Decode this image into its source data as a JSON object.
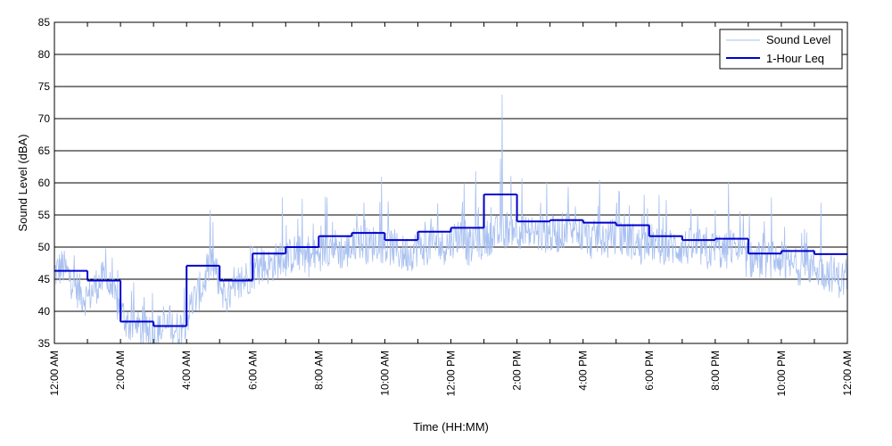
{
  "chart_data": {
    "type": "line",
    "title": "",
    "xlabel": "Time (HH:MM)",
    "ylabel": "Sound Level (dBA)",
    "xlim_hours": [
      0,
      24
    ],
    "ylim": [
      35,
      85
    ],
    "y_ticks": [
      35,
      40,
      45,
      50,
      55,
      60,
      65,
      70,
      75,
      80,
      85
    ],
    "x_tick_hours": [
      0,
      2,
      4,
      6,
      8,
      10,
      12,
      14,
      16,
      18,
      20,
      22,
      24
    ],
    "x_tick_labels": [
      "12:00 AM",
      "2:00 AM",
      "4:00 AM",
      "6:00 AM",
      "8:00 AM",
      "10:00 AM",
      "12:00 PM",
      "2:00 PM",
      "4:00 PM",
      "6:00 PM",
      "8:00 PM",
      "10:00 PM",
      "12:00 AM"
    ],
    "grid": "horizontal",
    "legend_position": "top-right",
    "series": [
      {
        "name": "Sound Level",
        "color": "#a8c0f0",
        "style": "thin",
        "anchor_hours": [
          0,
          0.25,
          0.5,
          0.75,
          1,
          1.25,
          1.5,
          1.75,
          2,
          2.25,
          2.5,
          2.75,
          3,
          3.25,
          3.5,
          3.75,
          4,
          4.25,
          4.5,
          4.75,
          5,
          5.25,
          5.5,
          5.75,
          6,
          6.25,
          6.5,
          6.75,
          7,
          7.25,
          7.5,
          7.75,
          8,
          8.25,
          8.5,
          8.75,
          9,
          9.25,
          9.5,
          9.75,
          10,
          10.25,
          10.5,
          10.75,
          11,
          11.25,
          11.5,
          11.75,
          12,
          12.25,
          12.5,
          12.75,
          13,
          13.25,
          13.5,
          13.75,
          14,
          14.25,
          14.5,
          14.75,
          15,
          15.25,
          15.5,
          15.75,
          16,
          16.25,
          16.5,
          16.75,
          17,
          17.25,
          17.5,
          17.75,
          18,
          18.25,
          18.5,
          18.75,
          19,
          19.25,
          19.5,
          19.75,
          20,
          20.25,
          20.5,
          20.75,
          21,
          21.25,
          21.5,
          21.75,
          22,
          22.25,
          22.5,
          22.75,
          23,
          23.25,
          23.5,
          23.75,
          24
        ],
        "anchor_values": [
          46,
          47,
          45,
          43,
          42,
          44,
          45,
          43,
          40,
          38,
          37,
          37,
          36,
          37,
          38,
          37,
          39,
          42,
          44,
          48,
          44,
          42,
          43,
          45,
          46,
          47,
          47,
          48,
          48,
          49,
          49,
          48,
          49,
          50,
          50,
          49,
          50,
          51,
          50,
          51,
          50,
          50,
          49,
          49,
          50,
          50,
          51,
          50,
          51,
          52,
          50,
          50,
          51,
          52,
          52,
          53,
          53,
          52,
          52,
          52,
          52,
          52,
          53,
          52,
          52,
          51,
          52,
          51,
          52,
          51,
          51,
          50,
          51,
          50,
          50,
          50,
          50,
          50,
          50,
          49,
          50,
          49,
          50,
          49,
          48,
          48,
          48,
          48,
          48,
          47,
          47,
          47,
          47,
          46,
          46,
          45,
          45
        ],
        "spikes": [
          [
            1.55,
            50
          ],
          [
            2.4,
            46
          ],
          [
            3.5,
            42
          ],
          [
            4.8,
            55
          ],
          [
            6.9,
            58
          ],
          [
            7.5,
            59
          ],
          [
            8.2,
            58
          ],
          [
            9.9,
            61
          ],
          [
            11.6,
            58
          ],
          [
            12.4,
            60
          ],
          [
            12.75,
            62
          ],
          [
            13.5,
            64
          ],
          [
            14.15,
            61
          ],
          [
            14.9,
            61
          ],
          [
            15.55,
            60
          ],
          [
            16.5,
            61
          ],
          [
            17.1,
            59
          ],
          [
            18.3,
            59
          ],
          [
            20.4,
            61.5
          ],
          [
            21.7,
            59
          ],
          [
            23.2,
            57
          ]
        ],
        "peak": [
          13.55,
          74.5
        ]
      },
      {
        "name": "1-Hour Leq",
        "color": "#0000cd",
        "style": "step",
        "values": [
          46.3,
          44.8,
          38.4,
          37.7,
          47.1,
          44.8,
          49.0,
          50.0,
          51.7,
          52.2,
          51.1,
          52.4,
          53.0,
          58.2,
          54.0,
          54.2,
          53.8,
          53.4,
          51.7,
          51.1,
          51.3,
          49.0,
          49.4,
          48.9
        ]
      }
    ]
  }
}
